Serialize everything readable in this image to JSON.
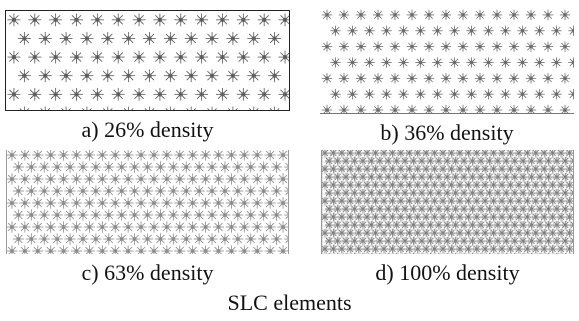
{
  "figure": {
    "title": "SLC elements",
    "panels": [
      {
        "id": "a",
        "caption": "a) 26% density",
        "density": 0.26,
        "element_color": "#555555"
      },
      {
        "id": "b",
        "caption": "b) 36% density",
        "density": 0.36,
        "element_color": "#6a6a6a"
      },
      {
        "id": "c",
        "caption": "c) 63% density",
        "density": 0.63,
        "element_color": "#8a8a8a"
      },
      {
        "id": "d",
        "caption": "d) 100% density",
        "density": 1.0,
        "element_color": "#7a7a7a"
      }
    ]
  }
}
